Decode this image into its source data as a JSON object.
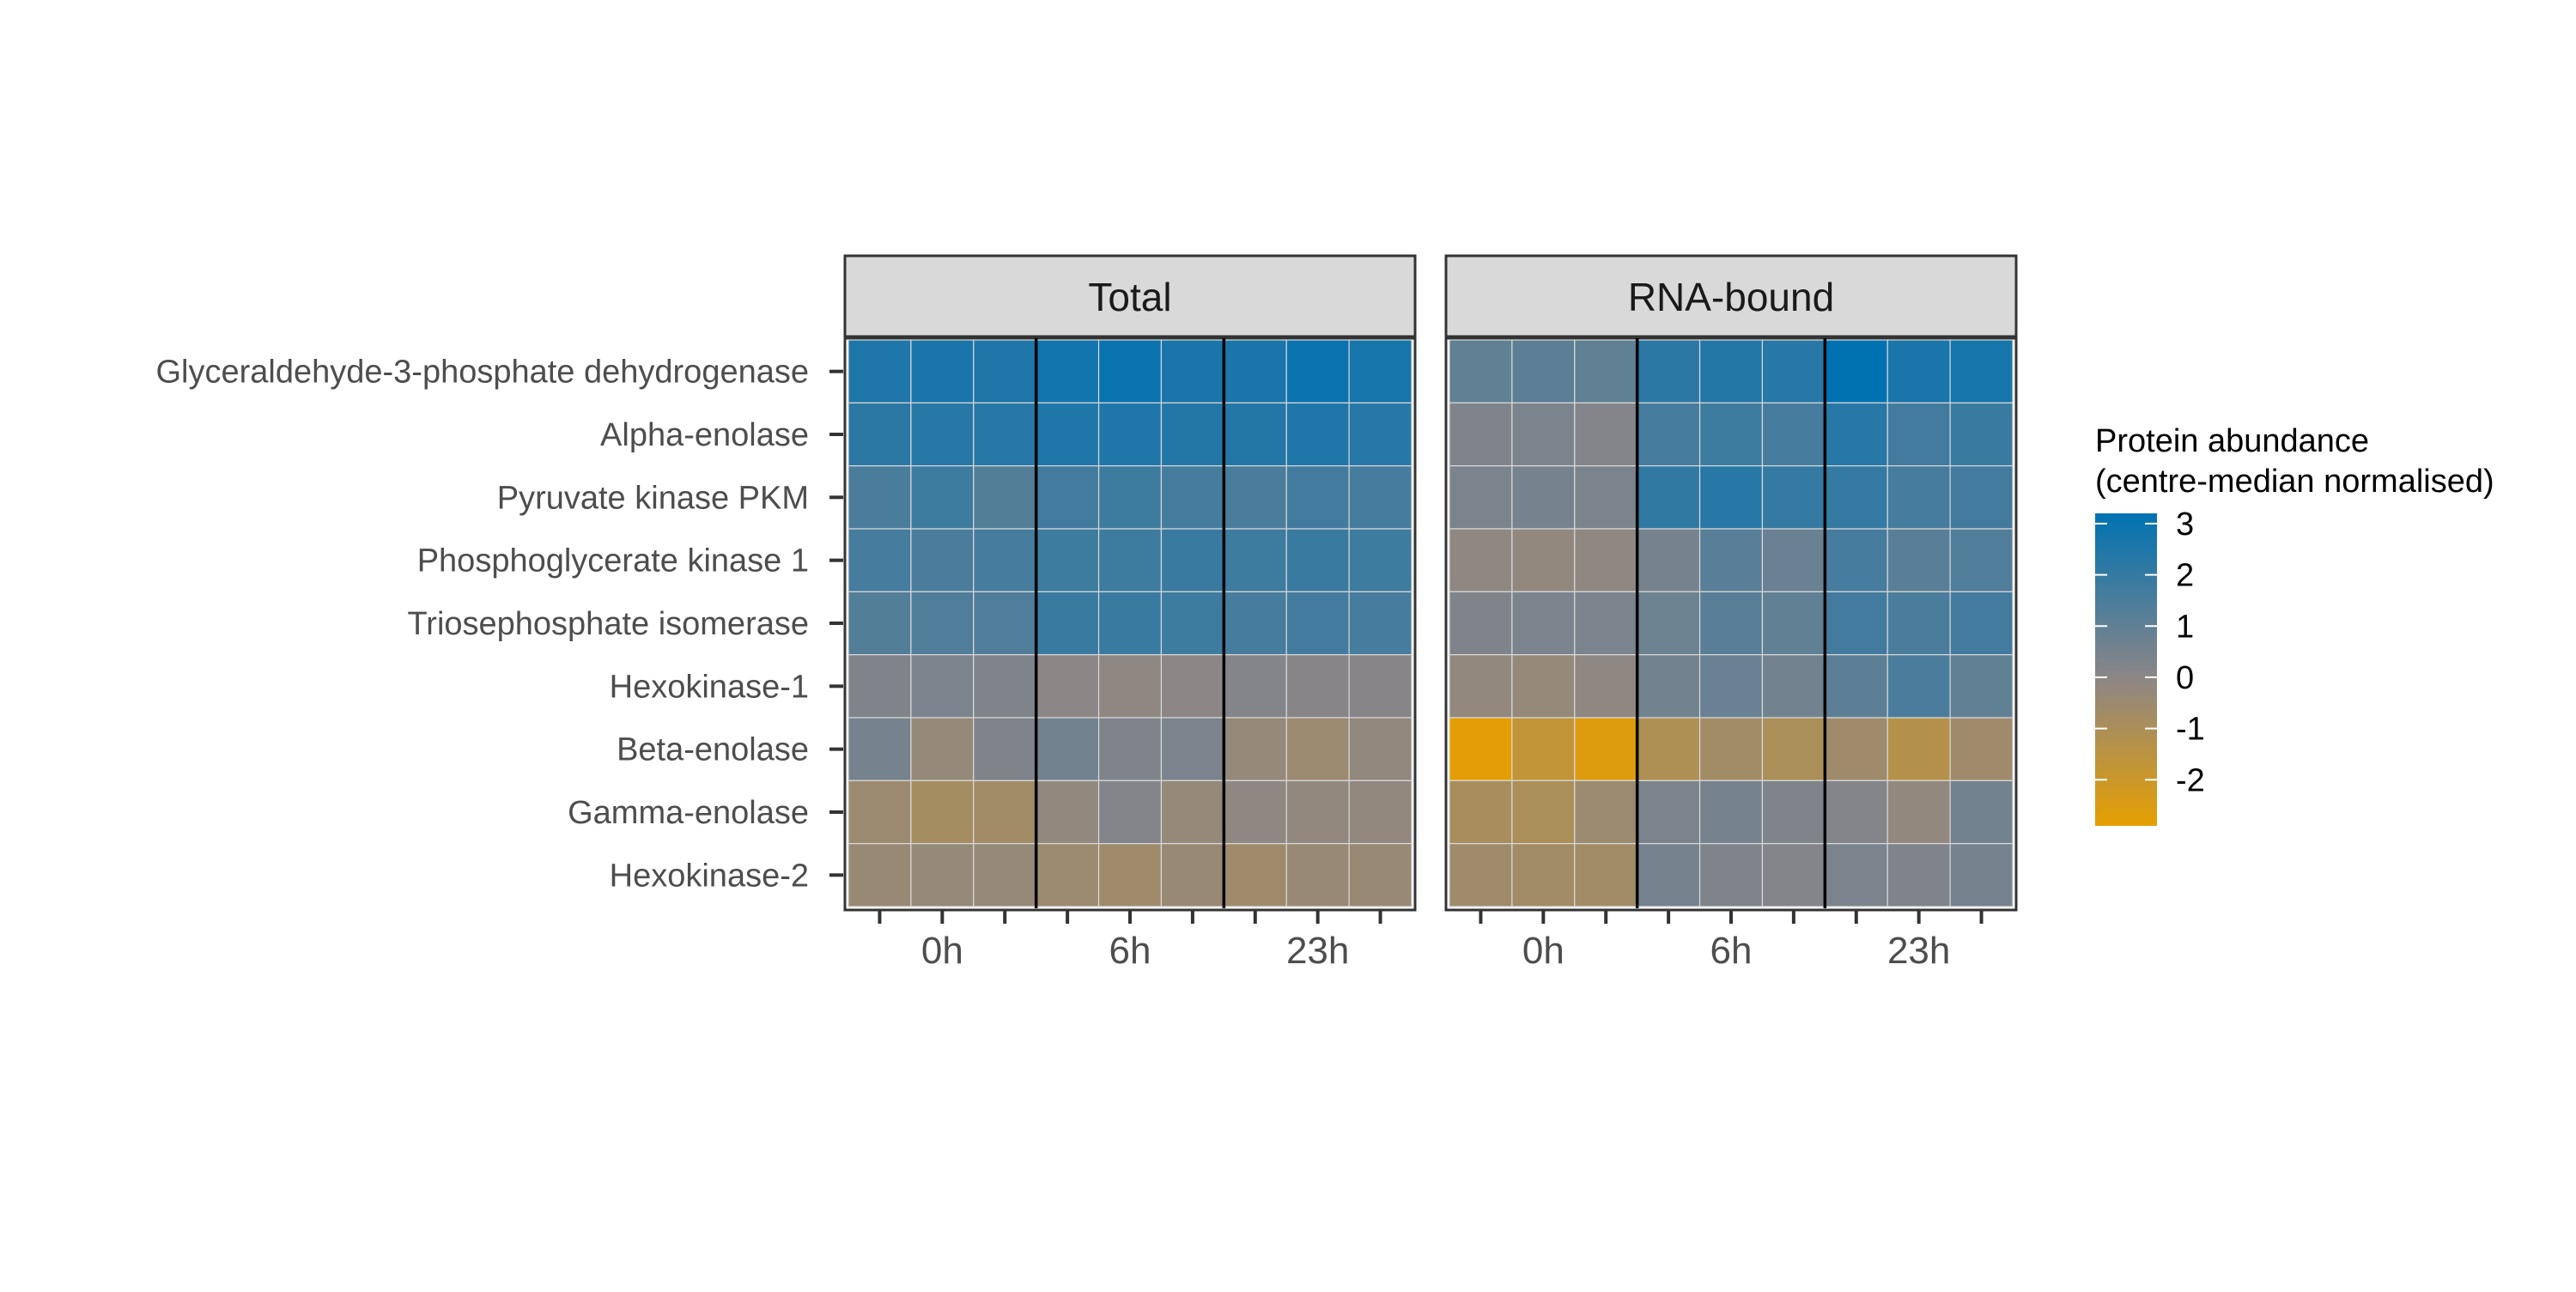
{
  "chart_data": {
    "type": "heatmap",
    "panels": [
      "Total",
      "RNA-bound"
    ],
    "rows": [
      "Glyceraldehyde-3-phosphate dehydrogenase",
      "Alpha-enolase",
      "Pyruvate kinase PKM",
      "Phosphoglycerate kinase 1",
      "Triosephosphate isomerase",
      "Hexokinase-1",
      "Beta-enolase",
      "Gamma-enolase",
      "Hexokinase-2"
    ],
    "timepoints": [
      "0h",
      "6h",
      "23h"
    ],
    "replicates_per_timepoint": 3,
    "values": {
      "Total": [
        [
          2.5,
          2.6,
          2.5,
          2.8,
          3.0,
          2.6,
          2.6,
          3.0,
          2.7
        ],
        [
          2.2,
          2.3,
          2.3,
          2.5,
          2.5,
          2.4,
          2.4,
          2.5,
          2.3
        ],
        [
          1.5,
          1.8,
          1.3,
          1.7,
          1.8,
          1.6,
          1.5,
          1.7,
          1.6
        ],
        [
          1.6,
          1.5,
          1.6,
          1.8,
          1.8,
          1.9,
          1.8,
          1.9,
          1.8
        ],
        [
          1.3,
          1.4,
          1.4,
          1.9,
          1.9,
          1.8,
          1.6,
          1.7,
          1.6
        ],
        [
          0.3,
          0.4,
          0.3,
          0.0,
          -0.1,
          0.0,
          0.2,
          0.1,
          0.1
        ],
        [
          0.5,
          -0.3,
          0.3,
          0.6,
          0.3,
          0.4,
          -0.3,
          -0.5,
          -0.2
        ],
        [
          -0.5,
          -0.8,
          -0.7,
          -0.2,
          0.2,
          -0.3,
          -0.1,
          -0.2,
          -0.2
        ],
        [
          -0.4,
          -0.3,
          -0.3,
          -0.5,
          -0.6,
          -0.4,
          -0.6,
          -0.4,
          -0.4
        ]
      ],
      "RNA-bound": [
        [
          1.0,
          1.1,
          1.0,
          2.2,
          2.4,
          2.3,
          3.2,
          2.6,
          2.7
        ],
        [
          0.3,
          0.4,
          0.2,
          1.6,
          1.8,
          1.6,
          2.3,
          1.7,
          1.9
        ],
        [
          0.4,
          0.5,
          0.4,
          2.1,
          2.3,
          2.0,
          2.0,
          1.6,
          1.7
        ],
        [
          -0.1,
          -0.2,
          -0.1,
          0.5,
          1.2,
          0.8,
          1.6,
          1.2,
          1.4
        ],
        [
          0.3,
          0.4,
          0.4,
          0.7,
          1.2,
          1.0,
          1.7,
          1.5,
          1.7
        ],
        [
          -0.2,
          -0.3,
          -0.1,
          0.6,
          0.8,
          0.6,
          1.1,
          1.5,
          1.0
        ],
        [
          -2.8,
          -1.7,
          -2.6,
          -1.1,
          -0.7,
          -1.0,
          -0.6,
          -1.3,
          -0.6
        ],
        [
          -0.9,
          -1.0,
          -0.5,
          0.4,
          0.5,
          0.3,
          0.2,
          -0.2,
          0.6
        ],
        [
          -0.6,
          -0.7,
          -0.7,
          0.5,
          0.3,
          0.2,
          0.4,
          0.3,
          0.5
        ]
      ]
    },
    "legend": {
      "title_line1": "Protein abundance",
      "title_line2": "(centre-median normalised)",
      "ticks": [
        "3",
        "2",
        "1",
        "0",
        "-1",
        "-2"
      ],
      "tick_values": [
        3,
        2,
        1,
        0,
        -1,
        -2
      ],
      "range": [
        -2.9,
        3.2
      ],
      "low_color": "#E69F00",
      "mid_color": "#8C8687",
      "high_color": "#0072B2",
      "placement": "right"
    },
    "colors": {
      "strip_fill": "#D9D9D9",
      "strip_border": "#333333",
      "separator": "#000000"
    }
  }
}
